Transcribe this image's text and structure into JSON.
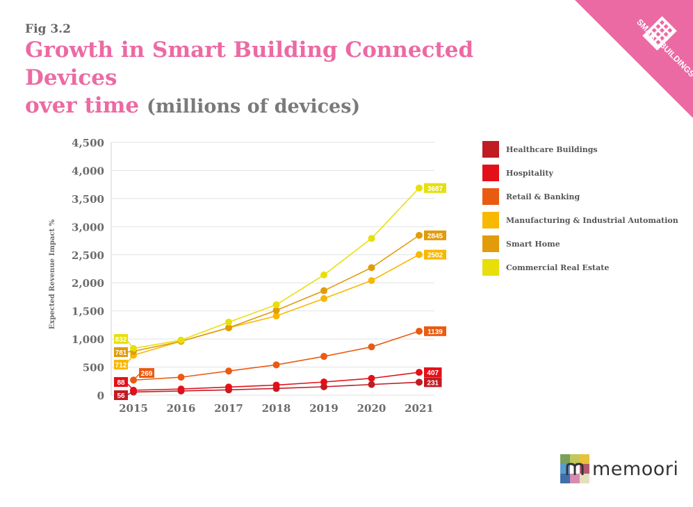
{
  "header": {
    "fig_label": "Fig 3.2",
    "title_line1": "Growth in Smart Building Connected Devices",
    "title_line2": "over time",
    "title_sub": "(millions of devices)"
  },
  "badge": {
    "text": "SMART BUILDINGS",
    "color": "#ec6aa3",
    "icon": "building-grid-icon"
  },
  "logo": {
    "text": "memoori",
    "icon": "memoori-logo-mark"
  },
  "chart_data": {
    "type": "line",
    "title": "Growth in Smart Building Connected Devices over time (millions of devices)",
    "xlabel": "",
    "ylabel": "Expected Revenue Impact %",
    "x": [
      "2015",
      "2016",
      "2017",
      "2018",
      "2019",
      "2020",
      "2021"
    ],
    "ylim": [
      0,
      4500
    ],
    "yticks": [
      0,
      500,
      1000,
      1500,
      2000,
      2500,
      3000,
      3500,
      4000,
      4500
    ],
    "ytick_labels": [
      "0",
      "500",
      "1,000",
      "1,500",
      "2,000",
      "2,500",
      "3,000",
      "3,500",
      "4,000",
      "4,500"
    ],
    "grid": true,
    "legend_position": "right",
    "series": [
      {
        "name": "Healthcare Buildings",
        "color": "#c11b23",
        "values": [
          56,
          75,
          95,
          120,
          150,
          190,
          231
        ],
        "start_label": "56",
        "end_label": "231"
      },
      {
        "name": "Hospitality",
        "color": "#e41019",
        "values": [
          88,
          110,
          145,
          180,
          235,
          300,
          407
        ],
        "start_label": "88",
        "end_label": "407"
      },
      {
        "name": "Retail & Banking",
        "color": "#ea5b12",
        "values": [
          269,
          320,
          430,
          540,
          690,
          860,
          1139
        ],
        "start_label": "269",
        "end_label": "1139"
      },
      {
        "name": "Manufacturing & Industrial Automation",
        "color": "#f9b800",
        "values": [
          712,
          960,
          1200,
          1410,
          1720,
          2040,
          2502
        ],
        "start_label": "712",
        "end_label": "2502"
      },
      {
        "name": "Smart Home",
        "color": "#e19b0b",
        "values": [
          781,
          960,
          1200,
          1510,
          1860,
          2270,
          2845
        ],
        "start_label": "781",
        "end_label": "2845"
      },
      {
        "name": "Commercial Real Estate",
        "color": "#e8df0a",
        "values": [
          832,
          980,
          1300,
          1610,
          2140,
          2790,
          3687
        ],
        "start_label": "832",
        "end_label": "3687"
      }
    ]
  }
}
